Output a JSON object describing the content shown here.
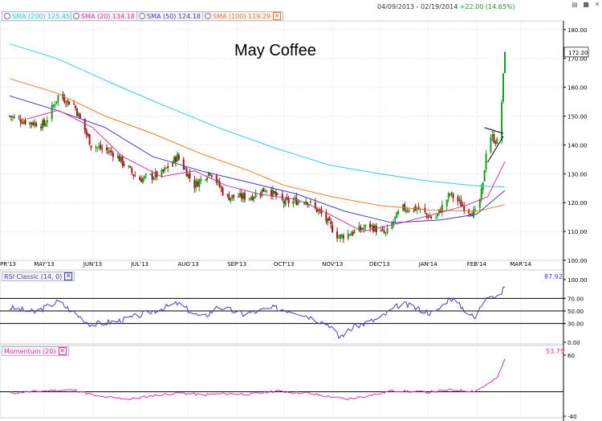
{
  "header": {
    "range_text": "04/09/2013 - 02/19/2014",
    "change_text": "+22.00 (14.65%)",
    "controls": [
      "▤",
      "■",
      "✕"
    ]
  },
  "legend": [
    {
      "label": "SMA (200) 125.45",
      "color": "#22d4e0"
    },
    {
      "label": "SMA (20) 134.18",
      "color": "#e0309a"
    },
    {
      "label": "SMA (50) 124.18",
      "color": "#3c3cc8"
    },
    {
      "label": "SMA (100) 119.29",
      "color": "#f07820"
    }
  ],
  "title": "May Coffee",
  "colors": {
    "up": "#1a9a1a",
    "down": "#a01414",
    "grid": "#dddddd",
    "axis": "#000000",
    "price_tag_border": "#555555"
  },
  "price_tag": "172.20",
  "rsi": {
    "label": "RSI Classic (14, 0)",
    "last_value": "87.92",
    "label_color": "#3c3cc8"
  },
  "momentum": {
    "label": "Momentum (20)",
    "last_value": "53.75",
    "label_color": "#e0309a"
  },
  "chart_data": [
    {
      "type": "candlestick",
      "xlabels": [
        "PR'13",
        "MAY'13",
        "JUN'13",
        "JUL'13",
        "AUG'13",
        "SEP'13",
        "OCT'13",
        "NOV'13",
        "DEC'13",
        "JAN'14",
        "FEB'14",
        "MAR'14"
      ],
      "yticks": [
        "100.00",
        "110.00",
        "120.00",
        "130.00",
        "140.00",
        "150.00",
        "160.00",
        "170.00",
        "180.00"
      ],
      "ylim": [
        100,
        183
      ],
      "close_anchors": [
        {
          "date": "2013-04-09",
          "close": 150.0
        },
        {
          "date": "2013-04-20",
          "close": 148.0
        },
        {
          "date": "2013-05-01",
          "close": 147.0
        },
        {
          "date": "2013-05-10",
          "close": 157.0
        },
        {
          "date": "2013-05-20",
          "close": 154.0
        },
        {
          "date": "2013-05-31",
          "close": 140.0
        },
        {
          "date": "2013-06-15",
          "close": 137.0
        },
        {
          "date": "2013-06-30",
          "close": 128.0
        },
        {
          "date": "2013-07-15",
          "close": 130.0
        },
        {
          "date": "2013-07-25",
          "close": 136.0
        },
        {
          "date": "2013-08-05",
          "close": 126.0
        },
        {
          "date": "2013-08-15",
          "close": 131.0
        },
        {
          "date": "2013-08-25",
          "close": 122.0
        },
        {
          "date": "2013-09-10",
          "close": 122.0
        },
        {
          "date": "2013-09-20",
          "close": 125.0
        },
        {
          "date": "2013-10-01",
          "close": 120.0
        },
        {
          "date": "2013-10-15",
          "close": 121.0
        },
        {
          "date": "2013-10-25",
          "close": 116.0
        },
        {
          "date": "2013-11-05",
          "close": 108.0
        },
        {
          "date": "2013-11-15",
          "close": 110.0
        },
        {
          "date": "2013-11-25",
          "close": 112.0
        },
        {
          "date": "2013-12-05",
          "close": 109.0
        },
        {
          "date": "2013-12-15",
          "close": 118.0
        },
        {
          "date": "2013-12-25",
          "close": 118.0
        },
        {
          "date": "2014-01-05",
          "close": 114.0
        },
        {
          "date": "2014-01-15",
          "close": 123.0
        },
        {
          "date": "2014-01-25",
          "close": 118.0
        },
        {
          "date": "2014-02-01",
          "close": 116.0
        },
        {
          "date": "2014-02-05",
          "close": 126.0
        },
        {
          "date": "2014-02-08",
          "close": 144.0
        },
        {
          "date": "2014-02-14",
          "close": 141.0
        },
        {
          "date": "2014-02-17",
          "close": 155.0
        },
        {
          "date": "2014-02-19",
          "close": 172.2
        }
      ],
      "sma": [
        {
          "label": "SMA (200)",
          "color": "#22d4e0",
          "points": [
            [
              "2013-04-09",
              175
            ],
            [
              "2013-05-09",
              170
            ],
            [
              "2013-06-15",
              161
            ],
            [
              "2013-07-15",
              154
            ],
            [
              "2013-08-20",
              146
            ],
            [
              "2013-09-25",
              139
            ],
            [
              "2013-10-30",
              133
            ],
            [
              "2013-12-01",
              130
            ],
            [
              "2014-01-01",
              127.5
            ],
            [
              "2014-02-01",
              125.8
            ],
            [
              "2014-02-19",
              125.4
            ]
          ]
        },
        {
          "label": "SMA (100)",
          "color": "#f07820",
          "points": [
            [
              "2013-04-09",
              163
            ],
            [
              "2013-05-09",
              158
            ],
            [
              "2013-06-09",
              150
            ],
            [
              "2013-07-09",
              144
            ],
            [
              "2013-08-09",
              137
            ],
            [
              "2013-09-09",
              131
            ],
            [
              "2013-10-01",
              126
            ],
            [
              "2013-11-01",
              122
            ],
            [
              "2013-12-01",
              119
            ],
            [
              "2014-01-01",
              117.5
            ],
            [
              "2014-02-01",
              117
            ],
            [
              "2014-02-19",
              119.3
            ]
          ]
        },
        {
          "label": "SMA (50)",
          "color": "#3c3cc8",
          "points": [
            [
              "2013-04-09",
              157
            ],
            [
              "2013-05-09",
              152
            ],
            [
              "2013-06-09",
              146
            ],
            [
              "2013-07-09",
              136
            ],
            [
              "2013-08-09",
              131
            ],
            [
              "2013-09-09",
              127
            ],
            [
              "2013-10-09",
              123
            ],
            [
              "2013-11-09",
              117
            ],
            [
              "2013-12-09",
              113
            ],
            [
              "2014-01-09",
              114
            ],
            [
              "2014-02-01",
              116
            ],
            [
              "2014-02-19",
              124.2
            ]
          ]
        },
        {
          "label": "SMA (20)",
          "color": "#e0309a",
          "points": [
            [
              "2013-04-20",
              149
            ],
            [
              "2013-05-10",
              152
            ],
            [
              "2013-06-01",
              146
            ],
            [
              "2013-06-20",
              136
            ],
            [
              "2013-07-15",
              129
            ],
            [
              "2013-08-05",
              131
            ],
            [
              "2013-08-25",
              126
            ],
            [
              "2013-09-15",
              123
            ],
            [
              "2013-10-10",
              121
            ],
            [
              "2013-10-30",
              116
            ],
            [
              "2013-11-20",
              110
            ],
            [
              "2013-12-15",
              113
            ],
            [
              "2014-01-05",
              116
            ],
            [
              "2014-01-25",
              119
            ],
            [
              "2014-02-08",
              122
            ],
            [
              "2014-02-19",
              134.2
            ]
          ]
        }
      ],
      "trendlines": [
        {
          "from": [
            "2014-02-06",
            146
          ],
          "to": [
            "2014-02-18",
            144
          ]
        },
        {
          "from": [
            "2014-02-08",
            134
          ],
          "to": [
            "2014-02-18",
            143
          ]
        }
      ]
    },
    {
      "type": "line",
      "name": "RSI Classic (14, 0)",
      "yticks": [
        "0.00",
        "30.00",
        "50.00",
        "70.00",
        "100.00"
      ],
      "levels": [
        30,
        50,
        70
      ],
      "ylim": [
        0,
        100
      ],
      "anchors": [
        {
          "date": "2013-04-09",
          "value": 55
        },
        {
          "date": "2013-04-25",
          "value": 48
        },
        {
          "date": "2013-05-10",
          "value": 65
        },
        {
          "date": "2013-05-31",
          "value": 28
        },
        {
          "date": "2013-06-20",
          "value": 35
        },
        {
          "date": "2013-07-10",
          "value": 50
        },
        {
          "date": "2013-07-25",
          "value": 62
        },
        {
          "date": "2013-08-10",
          "value": 38
        },
        {
          "date": "2013-08-20",
          "value": 57
        },
        {
          "date": "2013-09-05",
          "value": 45
        },
        {
          "date": "2013-09-25",
          "value": 55
        },
        {
          "date": "2013-10-10",
          "value": 48
        },
        {
          "date": "2013-10-30",
          "value": 28
        },
        {
          "date": "2013-11-05",
          "value": 8
        },
        {
          "date": "2013-11-15",
          "value": 25
        },
        {
          "date": "2013-12-01",
          "value": 38
        },
        {
          "date": "2013-12-15",
          "value": 62
        },
        {
          "date": "2014-01-05",
          "value": 45
        },
        {
          "date": "2014-01-15",
          "value": 72
        },
        {
          "date": "2014-01-31",
          "value": 38
        },
        {
          "date": "2014-02-08",
          "value": 80
        },
        {
          "date": "2014-02-14",
          "value": 70
        },
        {
          "date": "2014-02-19",
          "value": 87.92
        }
      ]
    },
    {
      "type": "line",
      "name": "Momentum (20)",
      "yticks": [
        "-40",
        "60"
      ],
      "ylim": [
        -40,
        60
      ],
      "zero_line": 0,
      "anchors": [
        {
          "date": "2013-04-09",
          "value": -2
        },
        {
          "date": "2013-05-05",
          "value": 2
        },
        {
          "date": "2013-05-20",
          "value": 3
        },
        {
          "date": "2013-06-05",
          "value": -8
        },
        {
          "date": "2013-06-25",
          "value": -12
        },
        {
          "date": "2013-07-10",
          "value": -6
        },
        {
          "date": "2013-07-25",
          "value": -2
        },
        {
          "date": "2013-08-10",
          "value": -5
        },
        {
          "date": "2013-08-25",
          "value": -3
        },
        {
          "date": "2013-09-10",
          "value": -4
        },
        {
          "date": "2013-09-25",
          "value": 1
        },
        {
          "date": "2013-10-15",
          "value": -2
        },
        {
          "date": "2013-10-30",
          "value": -8
        },
        {
          "date": "2013-11-10",
          "value": -12
        },
        {
          "date": "2013-11-25",
          "value": -6
        },
        {
          "date": "2013-12-10",
          "value": 2
        },
        {
          "date": "2014-01-01",
          "value": -1
        },
        {
          "date": "2014-01-15",
          "value": 3
        },
        {
          "date": "2014-01-31",
          "value": 1
        },
        {
          "date": "2014-02-10",
          "value": 15
        },
        {
          "date": "2014-02-15",
          "value": 25
        },
        {
          "date": "2014-02-19",
          "value": 53.75
        }
      ]
    }
  ]
}
